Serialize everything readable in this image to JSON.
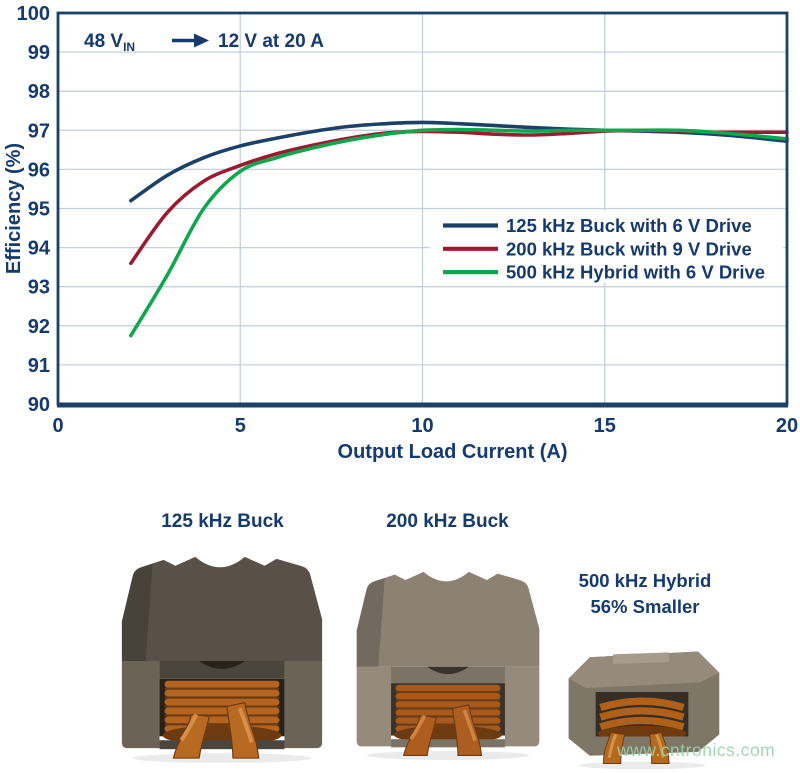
{
  "chart_data": {
    "type": "line",
    "title": "",
    "xlabel": "Output Load Current (A)",
    "ylabel": "Efficiency (%)",
    "xlim": [
      0,
      20
    ],
    "ylim": [
      90,
      100
    ],
    "x_ticks": [
      0,
      5,
      10,
      15,
      20
    ],
    "y_ticks": [
      90,
      91,
      92,
      93,
      94,
      95,
      96,
      97,
      98,
      99,
      100
    ],
    "grid": true,
    "legend_position": "lower right",
    "annotation": {
      "text": "48 V_IN → 12 V at 20 A",
      "left": "48 V",
      "sub": "IN",
      "right": "12 V at 20 A"
    },
    "x": [
      2,
      3,
      4,
      5,
      6,
      7,
      8,
      9,
      10,
      11,
      12,
      13,
      14,
      15,
      16,
      17,
      18,
      19,
      20
    ],
    "series": [
      {
        "name": "125 kHz Buck with 6 V Drive",
        "color": "#1b4168",
        "values": [
          95.2,
          95.85,
          96.3,
          96.6,
          96.8,
          96.97,
          97.1,
          97.17,
          97.2,
          97.17,
          97.12,
          97.07,
          97.03,
          97.0,
          96.98,
          96.95,
          96.9,
          96.82,
          96.72
        ]
      },
      {
        "name": "200 kHz Buck with 9 V Drive",
        "color": "#9b1b31",
        "values": [
          93.6,
          94.9,
          95.7,
          96.1,
          96.4,
          96.62,
          96.8,
          96.93,
          96.97,
          96.95,
          96.9,
          96.88,
          96.92,
          96.98,
          97.0,
          96.98,
          96.95,
          96.95,
          96.95
        ]
      },
      {
        "name": "500 kHz Hybrid with 6 V Drive",
        "color": "#10a64e",
        "values": [
          91.75,
          93.3,
          95.0,
          95.95,
          96.3,
          96.55,
          96.75,
          96.9,
          97.0,
          97.02,
          97.0,
          96.98,
          97.0,
          97.0,
          97.0,
          97.0,
          96.95,
          96.87,
          96.78
        ]
      }
    ]
  },
  "photos": {
    "buck125": {
      "label": "125 kHz Buck"
    },
    "buck200": {
      "label": "200 kHz Buck"
    },
    "hybrid500": {
      "label_line1": "500 kHz Hybrid",
      "label_line2": "56% Smaller"
    }
  },
  "watermark": "www.cntronics.com",
  "colors": {
    "text_navy": "#153a6e",
    "axis_navy": "#1b4168",
    "grid": "#c6d0dc",
    "legend_bg": "#ffffff",
    "watermark_green": "#9bd4ab",
    "palettes": {
      "ind1": {
        "coreTop": "#595147",
        "coreFront": "#4c453d",
        "pillar": "#6b6356",
        "window": "#282219",
        "copper": "#b26420",
        "copperDark": "#6e3a10",
        "leg": "#b96a22",
        "legHi": "#d89049"
      },
      "ind2": {
        "coreTop": "#8b8273",
        "coreFront": "#7b7365",
        "pillar": "#948b7c",
        "window": "#3a332c",
        "copper": "#a85a1e",
        "copperDark": "#6e3a10",
        "leg": "#ad5d20",
        "legHi": "#cf8442"
      },
      "ind3": {
        "coreTop": "#948b7b",
        "coreFront": "#7e7667",
        "pillar": "#a59c8c",
        "window": "#352e26",
        "copper": "#b06018",
        "copperDark": "#6e3a10",
        "leg": "#b46a1e",
        "legHi": "#d6954e"
      }
    }
  }
}
